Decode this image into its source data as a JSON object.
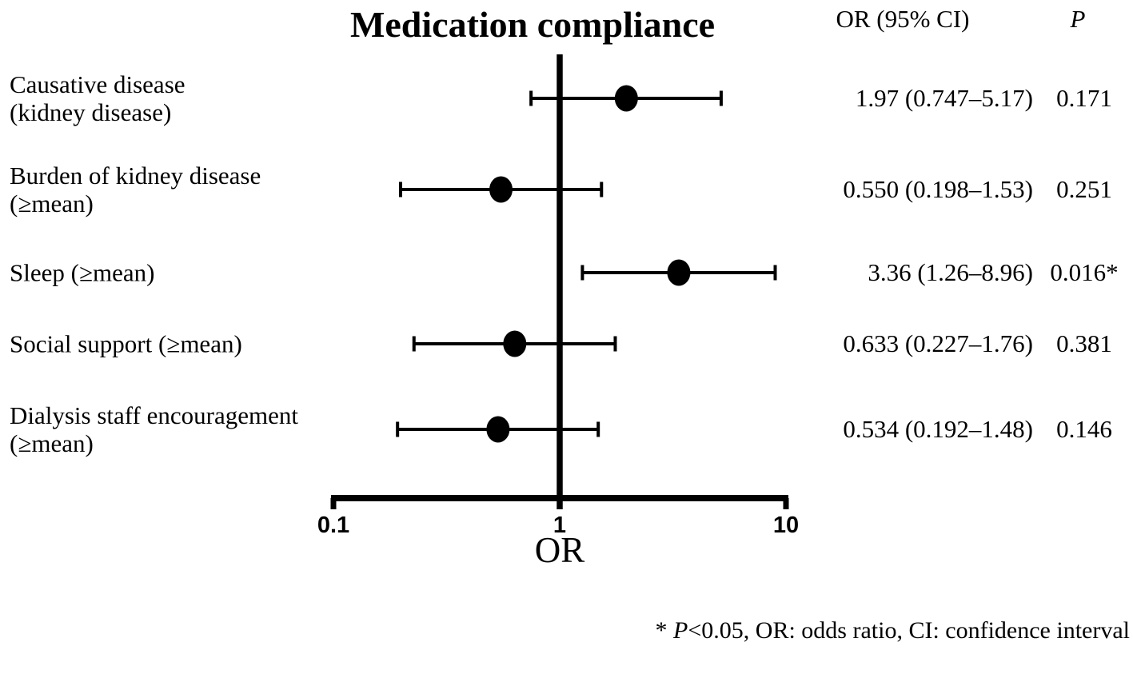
{
  "chart_data": {
    "type": "scatter",
    "variant": "forest-plot",
    "title": "Medication compliance",
    "columns": {
      "or_ci": "OR (95% CI)",
      "p": "P"
    },
    "xlabel": "OR",
    "x_scale": "log10",
    "xlim": [
      0.1,
      10
    ],
    "x_ticks": [
      0.1,
      1,
      10
    ],
    "x_tick_labels": [
      "0.1",
      "1",
      "10"
    ],
    "reference_line": 1,
    "grid": false,
    "rows": [
      {
        "label_lines": [
          "Causative disease",
          "(kidney disease)"
        ],
        "or": 1.97,
        "ci_low": 0.747,
        "ci_high": 5.17,
        "or_ci_text": "1.97 (0.747–5.17)",
        "p_text": "0.171"
      },
      {
        "label_lines": [
          "Burden of kidney disease",
          "(≥mean)"
        ],
        "or": 0.55,
        "ci_low": 0.198,
        "ci_high": 1.53,
        "or_ci_text": "0.550 (0.198–1.53)",
        "p_text": "0.251"
      },
      {
        "label_lines": [
          "Sleep (≥mean)"
        ],
        "or": 3.36,
        "ci_low": 1.26,
        "ci_high": 8.96,
        "or_ci_text": "3.36 (1.26–8.96)",
        "p_text": "0.016*"
      },
      {
        "label_lines": [
          "Social support (≥mean)"
        ],
        "or": 0.633,
        "ci_low": 0.227,
        "ci_high": 1.76,
        "or_ci_text": "0.633 (0.227–1.76)",
        "p_text": "0.381"
      },
      {
        "label_lines": [
          "Dialysis staff encouragement",
          "(≥mean)"
        ],
        "or": 0.534,
        "ci_low": 0.192,
        "ci_high": 1.48,
        "or_ci_text": "0.534 (0.192–1.48)",
        "p_text": "0.146"
      }
    ],
    "footnote_parts": {
      "prefix": "* ",
      "italic": "P",
      "rest": "<0.05, OR: odds ratio, CI: confidence interval"
    },
    "footnote": "* P<0.05, OR: odds ratio, CI: confidence interval",
    "colors": {
      "ink": "#000000",
      "background": "#ffffff"
    }
  }
}
